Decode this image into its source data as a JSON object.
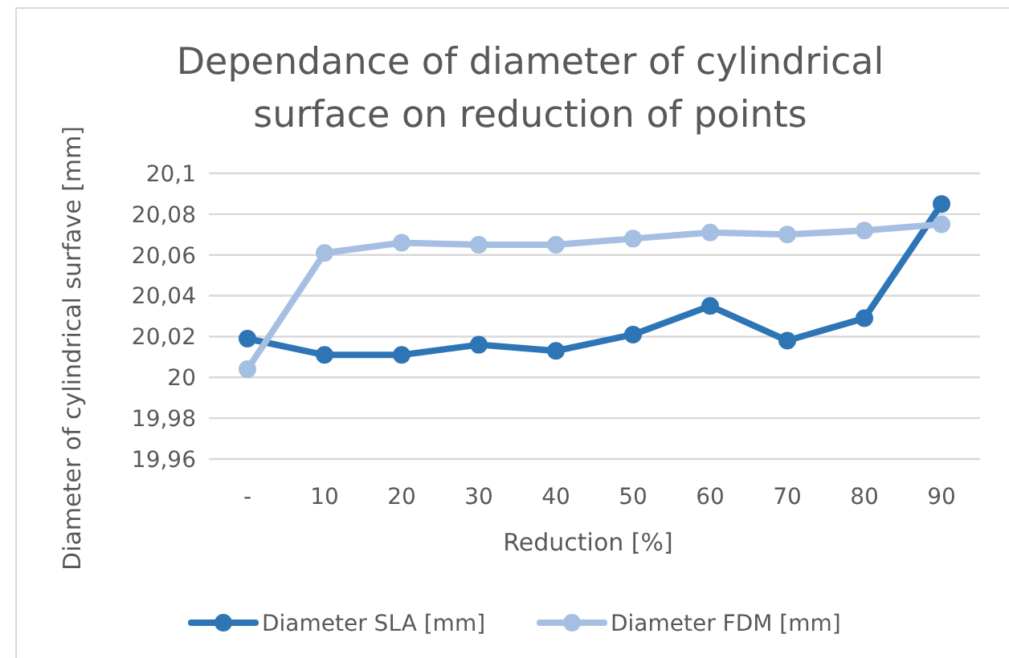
{
  "chart_data": {
    "type": "line",
    "title": "Dependance of diameter of cylindrical surface on reduction of points",
    "xlabel": "Reduction [%]",
    "ylabel": "Diameter of cylindrical surfave [mm]",
    "categories": [
      "-",
      "10",
      "20",
      "30",
      "40",
      "50",
      "60",
      "70",
      "80",
      "90"
    ],
    "series": [
      {
        "name": "Diameter SLA [mm]",
        "color": "#2e75b6",
        "values": [
          20.019,
          20.011,
          20.011,
          20.016,
          20.013,
          20.021,
          20.035,
          20.018,
          20.029,
          20.085
        ]
      },
      {
        "name": "Diameter FDM [mm]",
        "color": "#a5bfe2",
        "values": [
          20.004,
          20.061,
          20.066,
          20.065,
          20.065,
          20.068,
          20.071,
          20.07,
          20.072,
          20.075
        ]
      }
    ],
    "ylim": [
      19.96,
      20.1
    ],
    "yticks": [
      {
        "value": 19.96,
        "label": "19,96"
      },
      {
        "value": 19.98,
        "label": "19,98"
      },
      {
        "value": 20,
        "label": "20"
      },
      {
        "value": 20.02,
        "label": "20,02"
      },
      {
        "value": 20.04,
        "label": "20,04"
      },
      {
        "value": 20.06,
        "label": "20,06"
      },
      {
        "value": 20.08,
        "label": "20,08"
      },
      {
        "value": 20.1,
        "label": "20,1"
      }
    ],
    "grid": "y",
    "legend": "bottom",
    "marker": "circle",
    "line_style": "solid"
  }
}
